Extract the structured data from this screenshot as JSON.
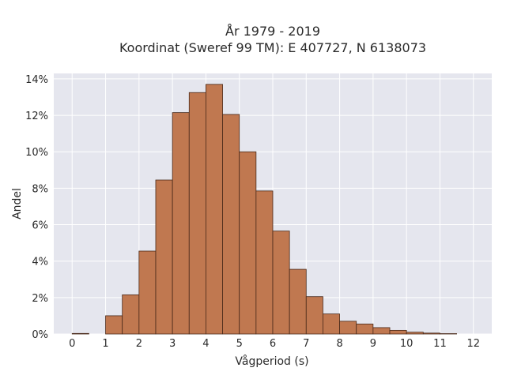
{
  "title_line1": "År 1979 - 2019",
  "title_line2": "Koordinat (Sweref 99 TM): E 407727, N 6138073",
  "chart_data": {
    "type": "bar",
    "title": "År 1979 - 2019\nKoordinat (Sweref 99 TM): E 407727, N 6138073",
    "xlabel": "Vågperiod (s)",
    "ylabel": "Andel",
    "bin_width": 0.5,
    "bin_starts": [
      0,
      0.5,
      1.0,
      1.5,
      2.0,
      2.5,
      3.0,
      3.5,
      4.0,
      4.5,
      5.0,
      5.5,
      6.0,
      6.5,
      7.0,
      7.5,
      8.0,
      8.5,
      9.0,
      9.5,
      10.0,
      10.5,
      11.0,
      11.5
    ],
    "values": [
      0.03,
      0,
      1.0,
      2.15,
      4.55,
      8.45,
      12.15,
      13.25,
      13.7,
      12.05,
      10.0,
      7.85,
      5.65,
      3.55,
      2.05,
      1.1,
      0.7,
      0.55,
      0.35,
      0.2,
      0.1,
      0.05,
      0.02,
      0
    ],
    "xlim": [
      -0.55,
      12.55
    ],
    "ylim": [
      0,
      14.3
    ],
    "xticks": [
      0,
      1,
      2,
      3,
      4,
      5,
      6,
      7,
      8,
      9,
      10,
      11,
      12
    ],
    "yticks": [
      0,
      2,
      4,
      6,
      8,
      10,
      12,
      14
    ],
    "ytick_labels": [
      "0%",
      "2%",
      "4%",
      "6%",
      "8%",
      "10%",
      "12%",
      "14%"
    ],
    "grid": true,
    "colors": {
      "bar": "#c07850",
      "bar_edge": "#4a2a1a",
      "plot_bg": "#e5e6ee",
      "grid": "#ffffff"
    }
  }
}
